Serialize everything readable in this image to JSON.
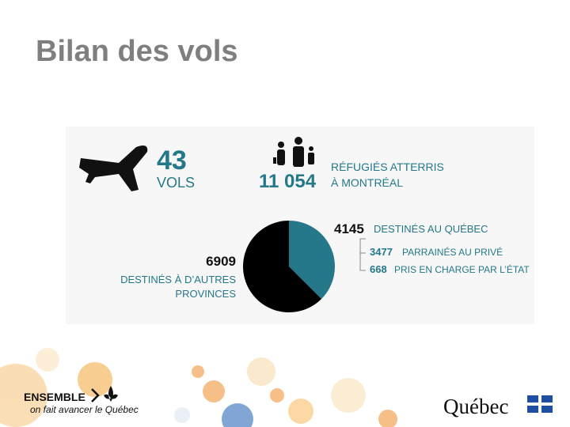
{
  "header": {
    "title": "Bilan des vols"
  },
  "infographic": {
    "flights": {
      "value": 43,
      "label": "VOLS"
    },
    "refugees": {
      "value": "11 054",
      "label_line1": "RÉFUGIÉS ATTERRIS",
      "label_line2": "À MONTRÉAL"
    },
    "quebec": {
      "value": 4145,
      "label": "DESTINÉS AU QUÉBEC",
      "color": "#25788a",
      "breakdown": [
        {
          "value": 3477,
          "label": "PARRAINÉS AU PRIVÉ"
        },
        {
          "value": 668,
          "label": "PRIS EN CHARGE PAR L’ÉTAT"
        }
      ]
    },
    "other": {
      "value": 6909,
      "label_line1": "DESTINÉS À D’AUTRES",
      "label_line2": "PROVINCES",
      "color": "#000000"
    }
  },
  "footer": {
    "slogan_main": "ENSEMBLE",
    "slogan_sub": "on fait avancer le Québec",
    "logo": "Québec"
  }
}
